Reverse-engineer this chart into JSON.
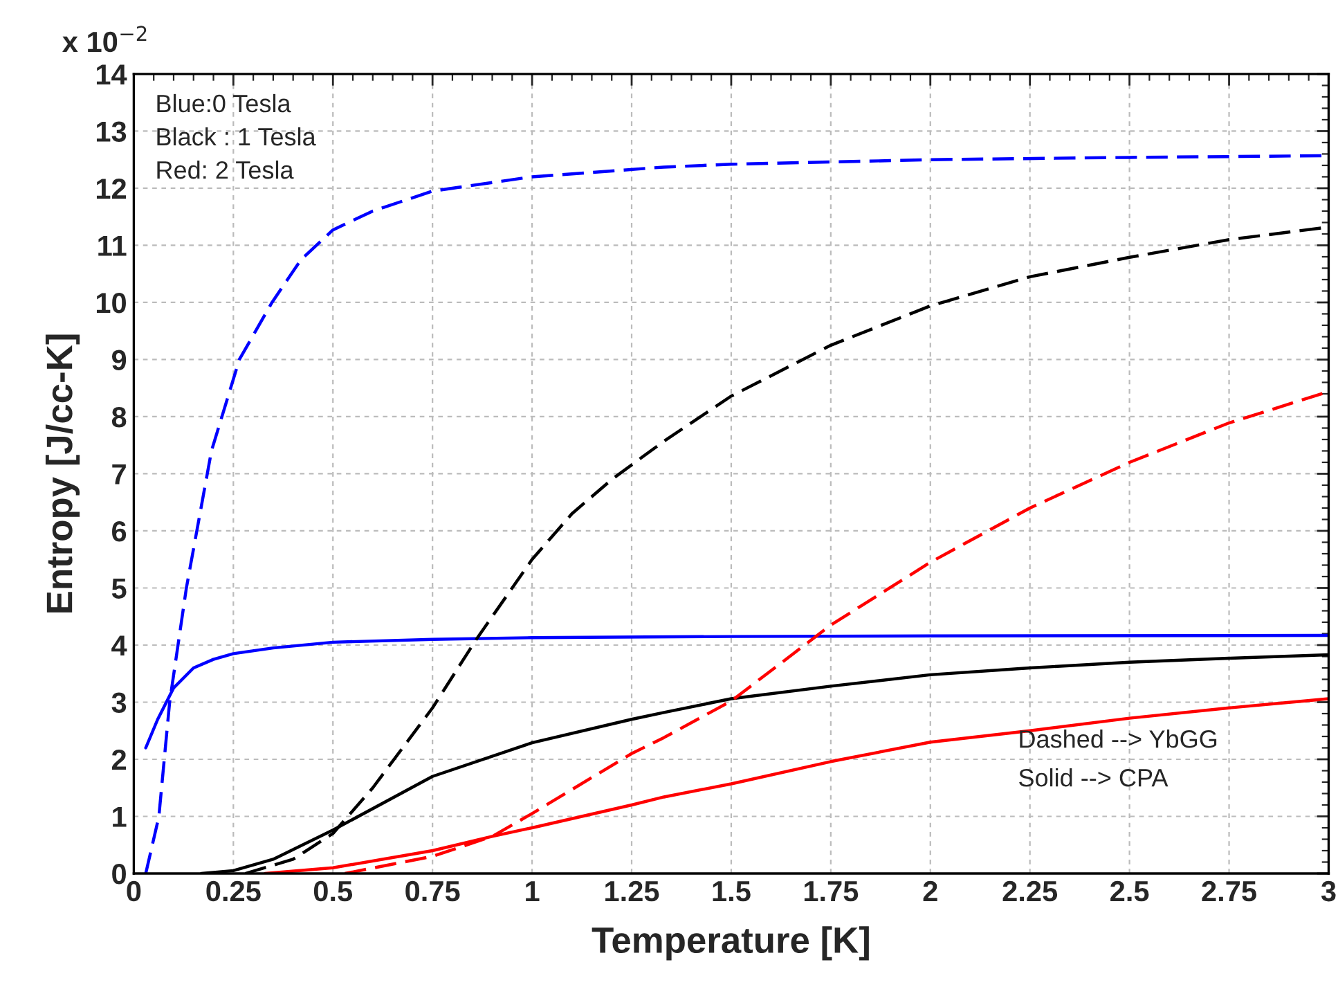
{
  "chart_data": {
    "type": "line",
    "xlabel": "Temperature [K]",
    "ylabel": "Entropy [J/cc-K]",
    "xlim": [
      0,
      3
    ],
    "ylim": [
      0,
      14
    ],
    "xticks": [
      0,
      0.25,
      0.5,
      0.75,
      1,
      1.25,
      1.5,
      1.75,
      2,
      2.25,
      2.5,
      2.75,
      3
    ],
    "yticks": [
      0,
      1,
      2,
      3,
      4,
      5,
      6,
      7,
      8,
      9,
      10,
      11,
      12,
      13,
      14
    ],
    "grid": true,
    "legend": false,
    "marker": "none",
    "annotations": [
      "x 10$^{−2}$",
      "Blue:0 Tesla\nBlack : 1 Tesla\nRed: 2 Tesla",
      "Dashed --> YbGG\nSolid --> CPA"
    ],
    "series": [
      {
        "color": "#0000ff",
        "line_style": "dashed",
        "x": [
          0.03,
          0.063,
          0.09,
          0.132,
          0.195,
          0.265,
          0.347,
          0.42,
          0.5,
          0.6,
          0.75,
          1.0,
          1.33,
          1.5,
          2.0,
          2.5,
          3.0
        ],
        "values": [
          0,
          1,
          3,
          5,
          7.4,
          9,
          10,
          10.75,
          11.27,
          11.6,
          11.95,
          12.2,
          12.37,
          12.42,
          12.5,
          12.54,
          12.57
        ]
      },
      {
        "color": "#0000ff",
        "line_style": "solid",
        "x": [
          0.03,
          0.06,
          0.1,
          0.15,
          0.2,
          0.25,
          0.35,
          0.5,
          0.75,
          1.0,
          1.5,
          2.0,
          3.0
        ],
        "values": [
          2.2,
          2.7,
          3.25,
          3.6,
          3.75,
          3.85,
          3.95,
          4.05,
          4.1,
          4.13,
          4.15,
          4.16,
          4.17
        ]
      },
      {
        "color": "#000000",
        "line_style": "dashed",
        "x": [
          0.28,
          0.4,
          0.5,
          0.6,
          0.75,
          0.86,
          0.95,
          1.0,
          1.1,
          1.2,
          1.331,
          1.5,
          1.75,
          2.0,
          2.25,
          2.5,
          2.75,
          3.0
        ],
        "values": [
          0,
          0.25,
          0.7,
          1.5,
          2.9,
          4.1,
          5,
          5.5,
          6.3,
          6.9,
          7.57,
          8.36,
          9.25,
          9.94,
          10.45,
          10.79,
          11.1,
          11.32
        ]
      },
      {
        "color": "#000000",
        "line_style": "solid",
        "x": [
          0.17,
          0.25,
          0.35,
          0.5,
          0.75,
          1.0,
          1.25,
          1.331,
          1.5,
          1.75,
          2.0,
          2.25,
          2.5,
          2.75,
          3.0
        ],
        "values": [
          0,
          0.05,
          0.25,
          0.76,
          1.7,
          2.29,
          2.7,
          2.82,
          3.06,
          3.28,
          3.48,
          3.6,
          3.7,
          3.77,
          3.83
        ]
      },
      {
        "color": "#ff0000",
        "line_style": "dashed",
        "x": [
          0.53,
          0.75,
          0.9,
          1.0,
          1.25,
          1.331,
          1.5,
          1.75,
          2.0,
          2.25,
          2.5,
          2.75,
          3.0
        ],
        "values": [
          0,
          0.3,
          0.65,
          1.05,
          2.1,
          2.38,
          3.02,
          4.35,
          5.45,
          6.4,
          7.2,
          7.89,
          8.44
        ]
      },
      {
        "color": "#ff0000",
        "line_style": "solid",
        "x": [
          0.33,
          0.5,
          0.75,
          0.9,
          1.0,
          1.25,
          1.331,
          1.5,
          1.75,
          2.0,
          2.25,
          2.5,
          2.75,
          3.0
        ],
        "values": [
          0,
          0.1,
          0.4,
          0.65,
          0.8,
          1.2,
          1.34,
          1.57,
          1.96,
          2.3,
          2.5,
          2.72,
          2.9,
          3.06
        ]
      }
    ]
  }
}
